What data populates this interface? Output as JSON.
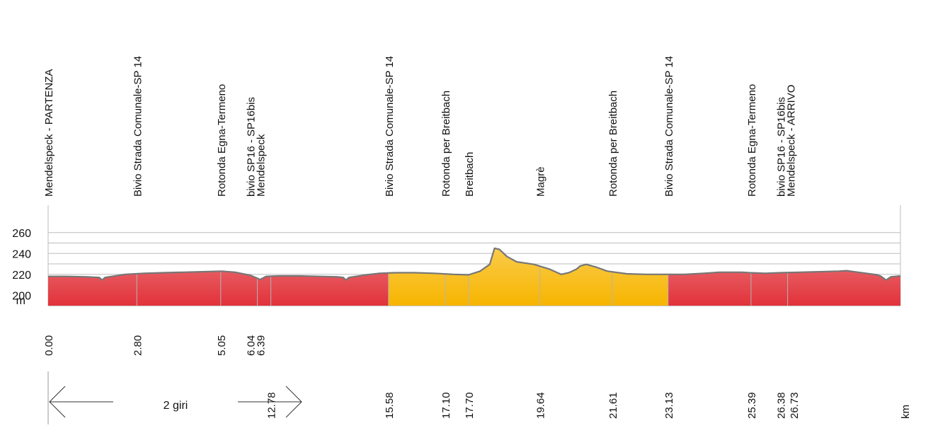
{
  "chart_data": {
    "type": "area",
    "title": "",
    "xlabel": "km",
    "ylabel": "m",
    "ylim": [
      190,
      270
    ],
    "yticks": [
      200,
      220,
      240,
      260
    ],
    "gridlines": [
      210,
      220,
      230,
      240,
      250,
      260
    ],
    "laps_text": "2 giri",
    "km_unit": "km",
    "m_unit": "m",
    "colors": {
      "red_top": "#f2c6c6",
      "red_bottom": "#e2323a",
      "yellow_top": "#fde7a6",
      "yellow_bottom": "#f7b500",
      "line": "#777777",
      "grid": "#bdbdbd"
    },
    "segments": [
      {
        "from": 0.0,
        "to": 15.58,
        "color": "red"
      },
      {
        "from": 15.58,
        "to": 23.13,
        "color": "yellow"
      },
      {
        "from": 23.13,
        "to": 26.73,
        "color": "red"
      }
    ],
    "profile": [
      [
        0.0,
        218
      ],
      [
        1.0,
        218
      ],
      [
        2.0,
        217.5
      ],
      [
        2.65,
        217
      ],
      [
        2.8,
        214.5
      ],
      [
        2.95,
        217
      ],
      [
        4.0,
        220
      ],
      [
        5.0,
        221
      ],
      [
        6.0,
        221.5
      ],
      [
        7.0,
        222
      ],
      [
        8.0,
        222.5
      ],
      [
        9.0,
        223
      ],
      [
        9.7,
        222
      ],
      [
        10.5,
        219
      ],
      [
        11.0,
        215
      ],
      [
        11.3,
        218
      ],
      [
        12.0,
        218.5
      ],
      [
        13.0,
        218.5
      ],
      [
        14.0,
        218
      ],
      [
        15.0,
        217.5
      ],
      [
        15.3,
        217
      ],
      [
        15.45,
        214.5
      ],
      [
        15.6,
        217
      ],
      [
        16.5,
        219.5
      ],
      [
        17.2,
        221
      ],
      [
        18.0,
        221.5
      ],
      [
        19.0,
        221.5
      ],
      [
        20.0,
        221
      ],
      [
        21.0,
        220
      ],
      [
        21.8,
        219.5
      ],
      [
        22.4,
        223
      ],
      [
        22.9,
        229.5
      ],
      [
        23.15,
        245
      ],
      [
        23.4,
        244
      ],
      [
        23.8,
        237
      ],
      [
        24.3,
        232
      ],
      [
        25.2,
        229.5
      ],
      [
        26.0,
        225
      ],
      [
        26.6,
        220
      ],
      [
        27.0,
        221.5
      ],
      [
        27.4,
        225
      ],
      [
        27.6,
        228
      ],
      [
        27.9,
        229.5
      ],
      [
        28.4,
        227
      ],
      [
        29.0,
        223
      ],
      [
        30.0,
        220.5
      ],
      [
        31.0,
        220
      ],
      [
        32.0,
        220
      ],
      [
        33.0,
        220
      ],
      [
        34.0,
        221
      ],
      [
        34.8,
        222
      ],
      [
        35.5,
        222
      ],
      [
        36.0,
        222
      ],
      [
        36.35,
        221.5
      ],
      [
        37.2,
        221
      ],
      [
        38.0,
        221.5
      ],
      [
        39.0,
        222
      ],
      [
        40.0,
        222.5
      ],
      [
        41.0,
        223
      ],
      [
        41.4,
        223.5
      ],
      [
        42.0,
        222
      ],
      [
        43.0,
        219.5
      ],
      [
        43.2,
        218
      ],
      [
        43.45,
        214.5
      ],
      [
        43.7,
        217.5
      ],
      [
        44.2,
        218.5
      ]
    ],
    "route_points": [
      {
        "label1": "Mendelspeck - PARTENZA",
        "label2": "",
        "km1": "0.00",
        "km2": "",
        "plot_x": 0.0,
        "divider": false
      },
      {
        "label1": "Bivio Strada Comunale-SP 14",
        "label2": "",
        "km1": "2.80",
        "km2": "",
        "plot_x": 4.6,
        "divider": true
      },
      {
        "label1": "Rotonda Egna-Termeno",
        "label2": "",
        "km1": "5.05",
        "km2": "",
        "plot_x": 8.95,
        "divider": true
      },
      {
        "label1": "bivio SP16 - SP16bis",
        "label2": "Mendelspeck",
        "km1": "6.04",
        "km2": "6.39",
        "plot_x": 10.85,
        "divider": true
      },
      {
        "label1": "",
        "label2": "",
        "km1": "",
        "km2": "12.78",
        "plot_x": 11.55,
        "divider": true
      },
      {
        "label1": "Bivio Strada Comunale-SP 14",
        "label2": "",
        "km1": "",
        "km2": "15.58",
        "plot_x": 17.65,
        "divider": true
      },
      {
        "label1": "Rotonda per Breitbach",
        "label2": "",
        "km1": "",
        "km2": "17.10",
        "plot_x": 20.6,
        "divider": true
      },
      {
        "label1": "Breitbach",
        "label2": "",
        "km1": "",
        "km2": "17.70",
        "plot_x": 21.8,
        "divider": true
      },
      {
        "label1": "Magrè",
        "label2": "",
        "km1": "",
        "km2": "19.64",
        "plot_x": 25.5,
        "divider": true
      },
      {
        "label1": "Rotonda per Breitbach",
        "label2": "",
        "km1": "",
        "km2": "21.61",
        "plot_x": 29.25,
        "divider": true
      },
      {
        "label1": "Bivio Strada Comunale-SP 14",
        "label2": "",
        "km1": "",
        "km2": "23.13",
        "plot_x": 32.15,
        "divider": true
      },
      {
        "label1": "Rotonda Egna-Termeno",
        "label2": "",
        "km1": "",
        "km2": "25.39",
        "plot_x": 36.45,
        "divider": true
      },
      {
        "label1": "bivio SP16 - SP16bis",
        "label2": "Mendelspeck - ARRIVO",
        "km1": "",
        "km2": "26.38",
        "plot_x": 38.35,
        "divider": true
      },
      {
        "label1": "",
        "label2": "",
        "km1": "",
        "km2": "26.73",
        "plot_x": 39.02,
        "divider": false
      }
    ]
  }
}
